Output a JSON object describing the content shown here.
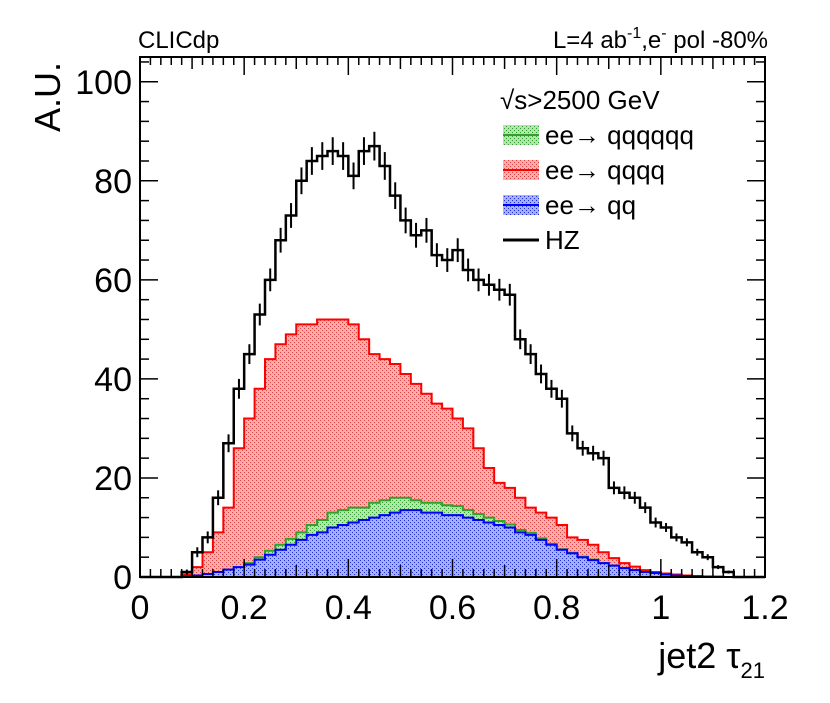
{
  "chart_data": {
    "type": "histogram",
    "header_left": "CLICdp",
    "header_right_parts": [
      "L=4 ab",
      "-1",
      ",e",
      "-",
      " pol -80%"
    ],
    "xlabel_main": "jet2 ",
    "xlabel_symbol": "τ",
    "xlabel_sub": "21",
    "ylabel": "A.U.",
    "xlim": [
      0,
      1.2
    ],
    "ylim": [
      0,
      105
    ],
    "x_ticks": [
      0,
      0.2,
      0.4,
      0.6,
      0.8,
      1,
      1.2
    ],
    "x_tick_labels": [
      "0",
      "0.2",
      "0.4",
      "0.6",
      "0.8",
      "1",
      "1.2"
    ],
    "y_ticks": [
      0,
      20,
      40,
      60,
      80,
      100
    ],
    "y_tick_labels": [
      "0",
      "20",
      "40",
      "60",
      "80",
      "100"
    ],
    "bin_edges_start": 0,
    "bin_width": 0.02,
    "legend_header_sqrt": "√",
    "legend_header": "s>2500 GeV",
    "legend_position": "top-right",
    "series": [
      {
        "name": "ee→ qqqqqq",
        "label_prefix": "ee",
        "label_arrow": "→",
        "label_suffix": " qqqqqq",
        "kind": "stacked",
        "color": "#33a02c",
        "fill": "#7fc97f",
        "values": [
          0,
          0,
          0,
          0,
          0,
          0,
          0,
          0,
          0,
          0,
          0.3,
          0.5,
          0.8,
          1,
          1.2,
          1.5,
          2,
          2.5,
          3,
          3,
          3,
          2.5,
          3,
          3,
          3,
          2.5,
          2,
          2,
          2,
          2,
          1.8,
          1.5,
          1.2,
          1,
          0.8,
          0.6,
          0.5,
          0.4,
          0.3,
          0.2,
          0.1,
          0.1,
          0.1,
          0.1,
          0,
          0,
          0,
          0,
          0,
          0,
          0,
          0,
          0,
          0,
          0,
          0,
          0,
          0,
          0,
          0
        ]
      },
      {
        "name": "ee→ qqqq",
        "label_prefix": "ee",
        "label_arrow": "→",
        "label_suffix": " qqqq",
        "kind": "stacked",
        "color": "#ff0000",
        "fill": "#f08a8a",
        "values": [
          0,
          0,
          0,
          0,
          0.5,
          2,
          5,
          9,
          14,
          26,
          32,
          38,
          44,
          47,
          49,
          51,
          51,
          52,
          52,
          52,
          51,
          48,
          45,
          44,
          43,
          41,
          39,
          37,
          35,
          34,
          32,
          30,
          26,
          22,
          19,
          18,
          16,
          14,
          13,
          12,
          10.5,
          8,
          7.5,
          6.5,
          5,
          3.8,
          2.8,
          2.1,
          1.4,
          1,
          0.7,
          0.5,
          0.3,
          0.2,
          0.1,
          0.1,
          0,
          0,
          0,
          0
        ]
      },
      {
        "name": "ee→ qq",
        "label_prefix": "ee",
        "label_arrow": "→",
        "label_suffix": " qq",
        "kind": "stacked",
        "color": "#0000ff",
        "fill": "#7f8cf0",
        "values": [
          0,
          0,
          0,
          0,
          0.1,
          0.3,
          0.6,
          1,
          1.5,
          2,
          2.5,
          3.5,
          4.5,
          5.5,
          6.5,
          7.5,
          8.5,
          9,
          10,
          10.5,
          11,
          11.5,
          12,
          12.5,
          13,
          13.5,
          13.5,
          13,
          13,
          12.5,
          12.5,
          12,
          11.5,
          11,
          10.5,
          10,
          9,
          8.5,
          7.5,
          6.5,
          5.5,
          4.8,
          4,
          3.4,
          2.8,
          2.3,
          1.8,
          1.4,
          1,
          0.8,
          0.5,
          0.3,
          0.2,
          0.1,
          0.1,
          0,
          0,
          0,
          0,
          0
        ]
      },
      {
        "name": "HZ",
        "label_prefix": "",
        "label_arrow": "",
        "label_suffix": "HZ",
        "kind": "points",
        "color": "#000000",
        "values": [
          0,
          0,
          0,
          0,
          1,
          5,
          8,
          16,
          27,
          38,
          45,
          53,
          60,
          68,
          73,
          80,
          84,
          85,
          86,
          85,
          81,
          86,
          87,
          83,
          77,
          72,
          69,
          70,
          65,
          64,
          66,
          62,
          60,
          59,
          58,
          57,
          48,
          45,
          41,
          38,
          36,
          29,
          26,
          25,
          24,
          18,
          17,
          16,
          14,
          11,
          10,
          8,
          7,
          5,
          4,
          2,
          1,
          0,
          0,
          0
        ],
        "errors": [
          0,
          0,
          0,
          0,
          0.5,
          1,
          1.2,
          1.5,
          1.8,
          2,
          2,
          2.2,
          2.3,
          2.5,
          2.5,
          2.7,
          2.8,
          2.8,
          2.8,
          2.8,
          2.7,
          2.8,
          2.9,
          2.8,
          2.7,
          2.6,
          2.5,
          2.5,
          2.4,
          2.4,
          2.4,
          2.3,
          2.3,
          2.2,
          2.2,
          2.2,
          2,
          2,
          1.9,
          1.8,
          1.8,
          1.6,
          1.5,
          1.5,
          1.5,
          1.3,
          1.3,
          1.2,
          1.1,
          1,
          0.9,
          0.8,
          0.8,
          0.7,
          0.6,
          0.4,
          0.3,
          0,
          0,
          0
        ]
      }
    ]
  }
}
